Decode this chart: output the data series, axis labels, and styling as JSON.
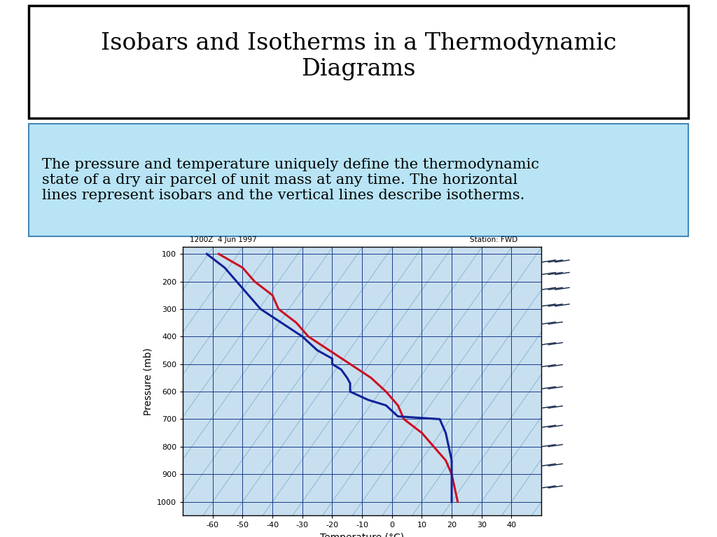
{
  "title": "Isobars and Isotherms in a Thermodynamic\nDiagrams",
  "subtitle": "The pressure and temperature uniquely define the thermodynamic\nstate of a dry air parcel of unit mass at any time. The horizontal\nlines represent isobars and the vertical lines describe isotherms.",
  "background_color": "#ffffff",
  "title_box_color": "#ffffff",
  "subtitle_box_color": "#b8e4f5",
  "chart_date": "1200Z  4 Jun 1997",
  "chart_station": "Station: FWD",
  "xlabel": "Temperature (°C)",
  "ylabel": "Pressure (mb)",
  "xlim": [
    -70,
    50
  ],
  "ylim": [
    1050,
    75
  ],
  "xticks": [
    -60,
    -50,
    -40,
    -30,
    -20,
    -10,
    0,
    10,
    20,
    30,
    40
  ],
  "yticks": [
    100,
    200,
    300,
    400,
    500,
    600,
    700,
    800,
    900,
    1000
  ],
  "grid_color": "#1a3a8a",
  "bg_chart_color": "#c8dff0",
  "diag_line_color": "#7aaec8",
  "temp_profile_color": "#cc1122",
  "dewpoint_profile_color": "#112299",
  "temp_profile": [
    [
      -58,
      100
    ],
    [
      -50,
      150
    ],
    [
      -46,
      200
    ],
    [
      -40,
      250
    ],
    [
      -38,
      300
    ],
    [
      -32,
      350
    ],
    [
      -28,
      400
    ],
    [
      -21,
      450
    ],
    [
      -14,
      500
    ],
    [
      -7,
      550
    ],
    [
      -2,
      600
    ],
    [
      2,
      650
    ],
    [
      4,
      700
    ],
    [
      10,
      750
    ],
    [
      14,
      800
    ],
    [
      18,
      850
    ],
    [
      20,
      900
    ],
    [
      21,
      950
    ],
    [
      22,
      1000
    ]
  ],
  "dewpoint_profile": [
    [
      -62,
      100
    ],
    [
      -56,
      150
    ],
    [
      -52,
      200
    ],
    [
      -48,
      250
    ],
    [
      -44,
      300
    ],
    [
      -37,
      350
    ],
    [
      -30,
      400
    ],
    [
      -25,
      450
    ],
    [
      -20,
      480
    ],
    [
      -20,
      500
    ],
    [
      -17,
      520
    ],
    [
      -15,
      550
    ],
    [
      -14,
      570
    ],
    [
      -14,
      600
    ],
    [
      -8,
      630
    ],
    [
      -2,
      650
    ],
    [
      0,
      670
    ],
    [
      2,
      690
    ],
    [
      16,
      700
    ],
    [
      18,
      750
    ],
    [
      19,
      800
    ],
    [
      20,
      850
    ],
    [
      20,
      900
    ],
    [
      20,
      950
    ],
    [
      20,
      1000
    ]
  ],
  "wind_barb_pressures": [
    130,
    175,
    230,
    290,
    355,
    430,
    510,
    590,
    660,
    730,
    800,
    870,
    950
  ]
}
